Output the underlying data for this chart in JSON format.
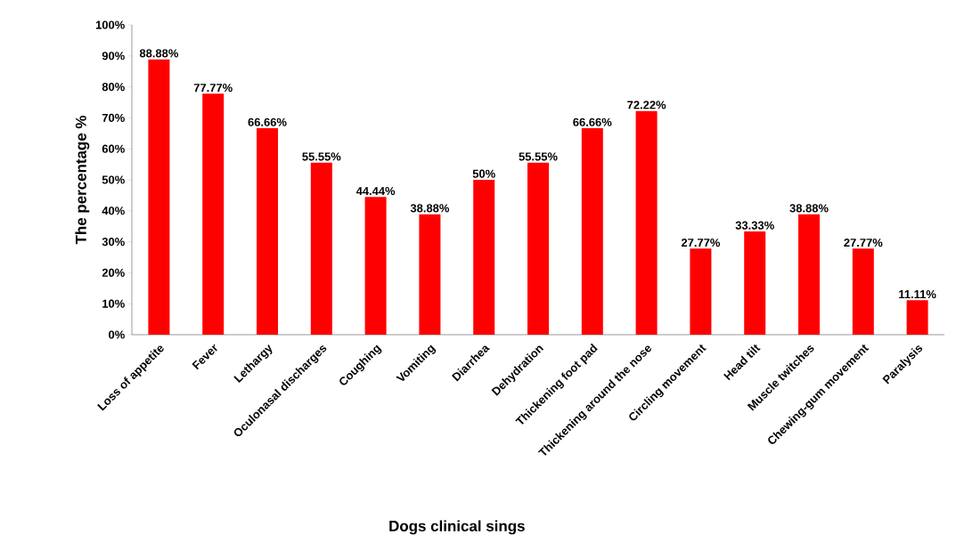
{
  "chart_data": {
    "type": "bar",
    "xlabel": "Dogs clinical  sings",
    "ylabel": "The percentage %",
    "categories": [
      "Loss of appetite",
      "Fever",
      "Lethargy",
      "Oculonasal discharges",
      "Coughing",
      "Vomiting",
      "Diarrhea",
      "Dehydration",
      "Thickening foot pad",
      "Thickening around the nose",
      "Circling movement",
      "Head tilt",
      "Muscle twitches",
      "Chewing-gum movement",
      "Paralysis"
    ],
    "values": [
      88.88,
      77.77,
      66.66,
      55.55,
      44.44,
      38.88,
      50,
      55.55,
      66.66,
      72.22,
      27.77,
      33.33,
      38.88,
      27.77,
      11.11
    ],
    "value_labels": [
      "88.88%",
      "77.77%",
      "66.66%",
      "55.55%",
      "44.44%",
      "38.88%",
      "50%",
      "55.55%",
      "66.66%",
      "72.22%",
      "27.77%",
      "33.33%",
      "38.88%",
      "27.77%",
      "11.11%"
    ],
    "color": "#ff0000",
    "ylim": [
      0,
      100
    ],
    "yticks": [
      {
        "value": 0,
        "label": "0%"
      },
      {
        "value": 10,
        "label": "10%"
      },
      {
        "value": 20,
        "label": "20%"
      },
      {
        "value": 30,
        "label": "30%"
      },
      {
        "value": 40,
        "label": "40%"
      },
      {
        "value": 50,
        "label": "50%"
      },
      {
        "value": 60,
        "label": "60%"
      },
      {
        "value": 70,
        "label": "70%"
      },
      {
        "value": 80,
        "label": "80%"
      },
      {
        "value": 90,
        "label": "90%"
      },
      {
        "value": 100,
        "label": "100%"
      }
    ],
    "grid": false
  }
}
